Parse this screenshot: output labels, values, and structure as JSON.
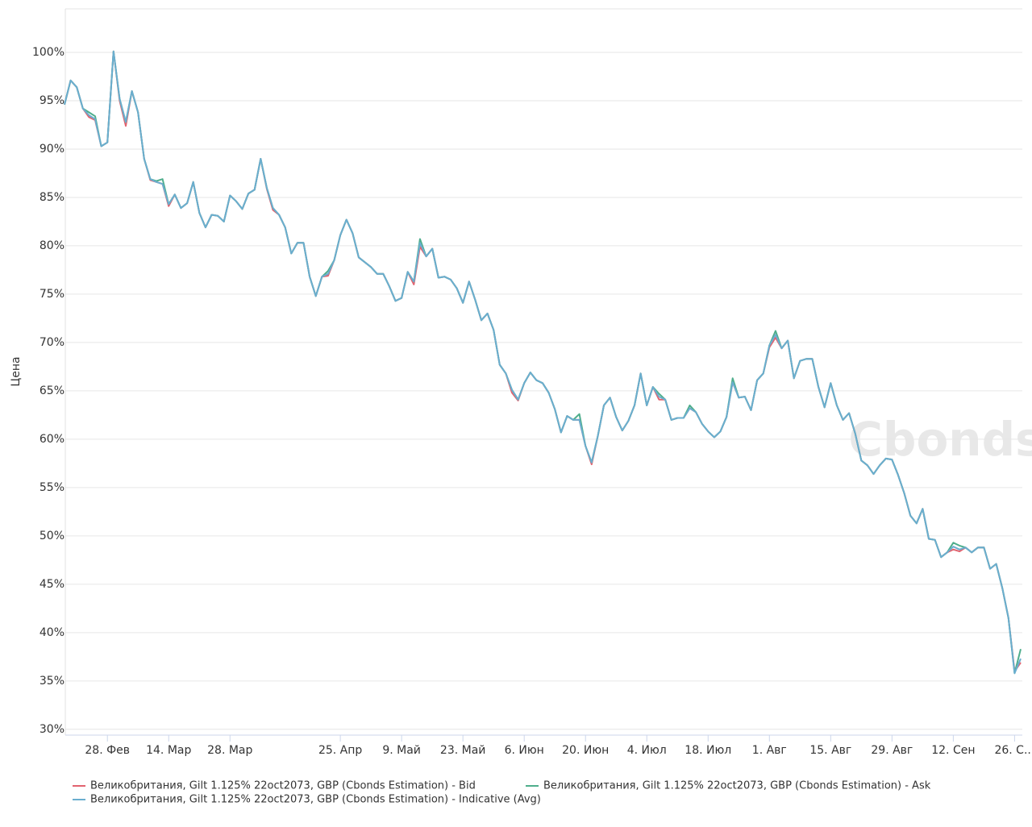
{
  "chart_data": {
    "type": "line",
    "y_label": "Цена",
    "watermark": "Cbonds",
    "categories": [
      null,
      null,
      null,
      null,
      null,
      null,
      null,
      "28. Фев",
      null,
      null,
      null,
      null,
      null,
      null,
      null,
      null,
      null,
      "14. Мар",
      null,
      null,
      null,
      null,
      null,
      null,
      null,
      null,
      null,
      "28. Мар",
      null,
      null,
      null,
      null,
      null,
      null,
      null,
      null,
      null,
      null,
      null,
      null,
      null,
      null,
      null,
      null,
      null,
      "25. Апр",
      null,
      null,
      null,
      null,
      null,
      null,
      null,
      null,
      null,
      "9. Май",
      null,
      null,
      null,
      null,
      null,
      null,
      null,
      null,
      null,
      "23. Май",
      null,
      null,
      null,
      null,
      null,
      null,
      null,
      null,
      null,
      "6. Июн",
      null,
      null,
      null,
      null,
      null,
      null,
      null,
      null,
      null,
      "20. Июн",
      null,
      null,
      null,
      null,
      null,
      null,
      null,
      null,
      null,
      "4. Июл",
      null,
      null,
      null,
      null,
      null,
      null,
      null,
      null,
      null,
      "18. Июл",
      null,
      null,
      null,
      null,
      null,
      null,
      null,
      null,
      null,
      "1. Авг",
      null,
      null,
      null,
      null,
      null,
      null,
      null,
      null,
      null,
      "15. Авг",
      null,
      null,
      null,
      null,
      null,
      null,
      null,
      null,
      null,
      "29. Авг",
      null,
      null,
      null,
      null,
      null,
      null,
      null,
      null,
      null,
      "12. Сен",
      null,
      null,
      null,
      null,
      null,
      null,
      null,
      null,
      null,
      "26. С...",
      null
    ],
    "series": [
      {
        "name": "Великобритания, Gilt 1.125% 22oct2073, GBP (Cbonds Estimation) - Bid",
        "color": "#e2636f",
        "values": [
          94.6,
          97.1,
          96.4,
          94.2,
          93.3,
          93.0,
          90.3,
          90.7,
          100.1,
          95.0,
          92.4,
          96.0,
          93.8,
          89.0,
          86.8,
          86.6,
          86.4,
          84.1,
          85.3,
          83.9,
          84.4,
          86.6,
          83.4,
          81.9,
          83.2,
          83.1,
          82.5,
          85.2,
          84.6,
          83.8,
          85.4,
          85.8,
          89.0,
          85.9,
          83.7,
          83.2,
          81.9,
          79.2,
          80.3,
          80.3,
          76.8,
          74.8,
          76.8,
          76.9,
          78.5,
          81.1,
          82.7,
          81.3,
          78.8,
          78.3,
          77.8,
          77.1,
          77.1,
          75.8,
          74.3,
          74.6,
          77.3,
          76.0,
          79.9,
          78.9,
          79.7,
          76.7,
          76.8,
          76.5,
          75.6,
          74.1,
          76.3,
          74.4,
          72.3,
          73.0,
          71.3,
          67.7,
          66.8,
          64.8,
          64.0,
          65.8,
          66.9,
          66.1,
          65.8,
          64.8,
          63.1,
          60.7,
          62.4,
          62.0,
          62.0,
          59.3,
          57.4,
          60.3,
          63.5,
          64.3,
          62.3,
          60.9,
          61.9,
          63.5,
          66.8,
          63.5,
          65.4,
          64.1,
          64.1,
          62.0,
          62.2,
          62.2,
          63.2,
          62.8,
          61.6,
          60.8,
          60.2,
          60.8,
          62.3,
          65.9,
          64.3,
          64.4,
          63.0,
          66.1,
          66.8,
          69.5,
          70.5,
          69.4,
          70.2,
          66.3,
          68.1,
          68.3,
          68.3,
          65.4,
          63.3,
          65.8,
          63.5,
          62.0,
          62.7,
          60.6,
          57.8,
          57.3,
          56.4,
          57.3,
          58.0,
          57.9,
          56.3,
          54.4,
          52.1,
          51.3,
          52.8,
          49.7,
          49.6,
          47.8,
          48.3,
          48.6,
          48.4,
          48.8,
          48.3,
          48.8,
          48.8,
          46.6,
          47.1,
          44.6,
          41.5,
          36.0,
          36.9
        ]
      },
      {
        "name": "Великобритания, Gilt 1.125% 22oct2073, GBP (Cbonds Estimation) - Ask",
        "color": "#4fae8c",
        "values": [
          94.6,
          97.1,
          96.4,
          94.2,
          93.8,
          93.4,
          90.3,
          90.7,
          100.1,
          95.2,
          92.8,
          96.0,
          93.8,
          89.0,
          86.9,
          86.7,
          86.9,
          84.3,
          85.3,
          83.9,
          84.4,
          86.6,
          83.4,
          81.9,
          83.2,
          83.1,
          82.5,
          85.2,
          84.6,
          83.8,
          85.4,
          85.8,
          89.0,
          86.0,
          83.9,
          83.2,
          81.9,
          79.2,
          80.3,
          80.3,
          76.8,
          74.8,
          76.8,
          77.4,
          78.5,
          81.1,
          82.7,
          81.3,
          78.8,
          78.3,
          77.8,
          77.1,
          77.1,
          75.8,
          74.3,
          74.6,
          77.3,
          76.3,
          80.7,
          78.9,
          79.7,
          76.7,
          76.8,
          76.5,
          75.6,
          74.1,
          76.3,
          74.4,
          72.3,
          73.0,
          71.3,
          67.7,
          66.8,
          65.1,
          64.1,
          65.8,
          66.9,
          66.1,
          65.8,
          64.8,
          63.1,
          60.7,
          62.4,
          62.0,
          62.6,
          59.3,
          57.6,
          60.3,
          63.5,
          64.3,
          62.3,
          60.9,
          61.9,
          63.5,
          66.8,
          63.5,
          65.4,
          64.7,
          64.1,
          62.0,
          62.2,
          62.2,
          63.5,
          62.8,
          61.6,
          60.8,
          60.2,
          60.8,
          62.3,
          66.3,
          64.3,
          64.4,
          63.0,
          66.1,
          66.8,
          69.7,
          71.2,
          69.4,
          70.2,
          66.3,
          68.1,
          68.3,
          68.3,
          65.4,
          63.3,
          65.8,
          63.5,
          62.0,
          62.7,
          60.6,
          57.8,
          57.3,
          56.4,
          57.3,
          58.0,
          57.9,
          56.3,
          54.4,
          52.1,
          51.3,
          52.8,
          49.7,
          49.6,
          47.8,
          48.3,
          49.3,
          49.0,
          48.8,
          48.3,
          48.8,
          48.8,
          46.6,
          47.1,
          44.6,
          41.5,
          35.8,
          38.3
        ]
      },
      {
        "name": "Великобритания, Gilt 1.125% 22oct2073, GBP (Cbonds Estimation) - Indicative (Avg)",
        "color": "#6aaecf",
        "values": [
          94.6,
          97.1,
          96.4,
          94.2,
          93.5,
          93.1,
          90.3,
          90.7,
          100.1,
          95.2,
          92.8,
          96.0,
          93.8,
          89.0,
          86.9,
          86.6,
          86.4,
          84.3,
          85.3,
          83.9,
          84.4,
          86.6,
          83.4,
          81.9,
          83.2,
          83.1,
          82.5,
          85.2,
          84.6,
          83.8,
          85.4,
          85.8,
          89.0,
          86.0,
          83.9,
          83.2,
          81.9,
          79.2,
          80.3,
          80.3,
          76.8,
          74.8,
          76.8,
          77.1,
          78.5,
          81.1,
          82.7,
          81.3,
          78.8,
          78.3,
          77.8,
          77.1,
          77.1,
          75.8,
          74.3,
          74.6,
          77.3,
          76.3,
          80.3,
          78.9,
          79.7,
          76.7,
          76.8,
          76.5,
          75.6,
          74.1,
          76.3,
          74.4,
          72.3,
          73.0,
          71.3,
          67.7,
          66.8,
          65.1,
          64.1,
          65.8,
          66.9,
          66.1,
          65.8,
          64.8,
          63.1,
          60.7,
          62.4,
          62.0,
          62.0,
          59.3,
          57.6,
          60.3,
          63.5,
          64.3,
          62.3,
          60.9,
          61.9,
          63.5,
          66.8,
          63.5,
          65.4,
          64.4,
          64.1,
          62.0,
          62.2,
          62.2,
          63.2,
          62.8,
          61.6,
          60.8,
          60.2,
          60.8,
          62.3,
          65.9,
          64.3,
          64.4,
          63.0,
          66.1,
          66.8,
          69.7,
          70.8,
          69.4,
          70.2,
          66.3,
          68.1,
          68.3,
          68.3,
          65.4,
          63.3,
          65.8,
          63.5,
          62.0,
          62.7,
          60.6,
          57.8,
          57.3,
          56.4,
          57.3,
          58.0,
          57.9,
          56.3,
          54.4,
          52.1,
          51.3,
          52.8,
          49.7,
          49.6,
          47.8,
          48.3,
          48.9,
          48.6,
          48.8,
          48.3,
          48.8,
          48.8,
          46.6,
          47.1,
          44.6,
          41.5,
          35.8,
          37.3
        ]
      }
    ],
    "ylim": [
      29.4,
      104.5
    ],
    "yticks": [
      {
        "value": 30,
        "label": "30%"
      },
      {
        "value": 35,
        "label": "35%"
      },
      {
        "value": 40,
        "label": "40%"
      },
      {
        "value": 45,
        "label": "45%"
      },
      {
        "value": 50,
        "label": "50%"
      },
      {
        "value": 55,
        "label": "55%"
      },
      {
        "value": 60,
        "label": "60%"
      },
      {
        "value": 65,
        "label": "65%"
      },
      {
        "value": 70,
        "label": "70%"
      },
      {
        "value": 75,
        "label": "75%"
      },
      {
        "value": 80,
        "label": "80%"
      },
      {
        "value": 85,
        "label": "85%"
      },
      {
        "value": 90,
        "label": "90%"
      },
      {
        "value": 95,
        "label": "95%"
      },
      {
        "value": 100,
        "label": "100%"
      }
    ],
    "grid": true
  }
}
